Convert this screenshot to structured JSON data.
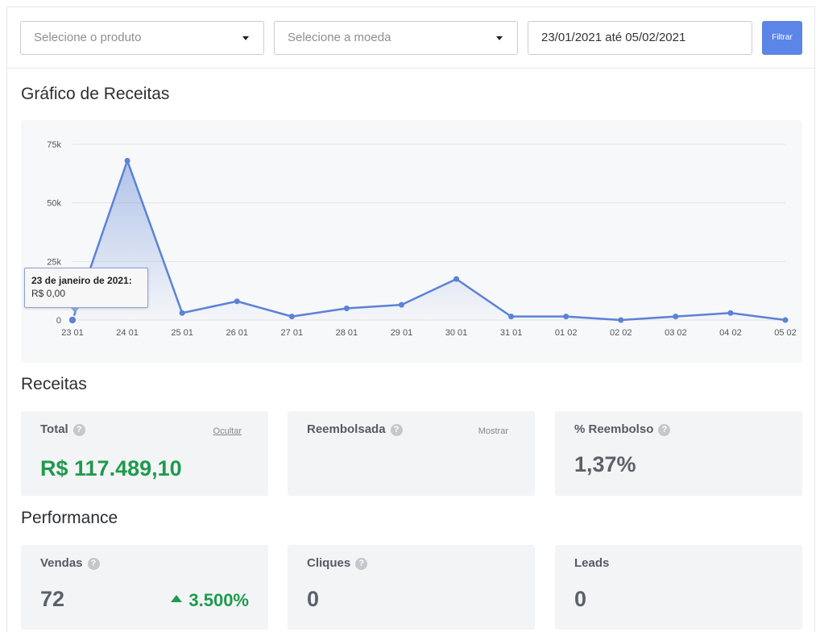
{
  "filters": {
    "product_placeholder": "Selecione o produto",
    "currency_placeholder": "Selecione a moeda",
    "date_range": "23/01/2021 até 05/02/2021",
    "filter_button": "Filtrar"
  },
  "sections": {
    "chart_title": "Gráfico de Receitas",
    "revenue_title": "Receitas",
    "performance_title": "Performance"
  },
  "tooltip": {
    "date": "23 de janeiro de 2021:",
    "value": "R$ 0,00"
  },
  "chart_data": {
    "type": "area",
    "x": [
      "23 01",
      "24 01",
      "25 01",
      "26 01",
      "27 01",
      "28 01",
      "29 01",
      "30 01",
      "31 01",
      "01 02",
      "02 02",
      "03 02",
      "04 02",
      "05 02"
    ],
    "values": [
      0,
      68000,
      3000,
      8000,
      1500,
      5000,
      6500,
      17500,
      1500,
      1500,
      0,
      1500,
      3000,
      0
    ],
    "yticks": [
      "0",
      "25k",
      "50k",
      "75k"
    ],
    "ylim": [
      0,
      75000
    ],
    "grid": true,
    "color": "#5b82d6"
  },
  "revenue_cards": {
    "total": {
      "label": "Total",
      "link": "Ocultar",
      "value": "R$ 117.489,10"
    },
    "refunded": {
      "label": "Reembolsada",
      "link": "Mostrar"
    },
    "refund_pct": {
      "label": "% Reembolso",
      "value": "1,37%"
    }
  },
  "performance_cards": {
    "sales": {
      "label": "Vendas",
      "value": "72",
      "delta": "3.500%"
    },
    "clicks": {
      "label": "Cliques",
      "value": "0"
    },
    "leads": {
      "label": "Leads",
      "value": "0"
    }
  },
  "icons": {
    "help": "?"
  }
}
